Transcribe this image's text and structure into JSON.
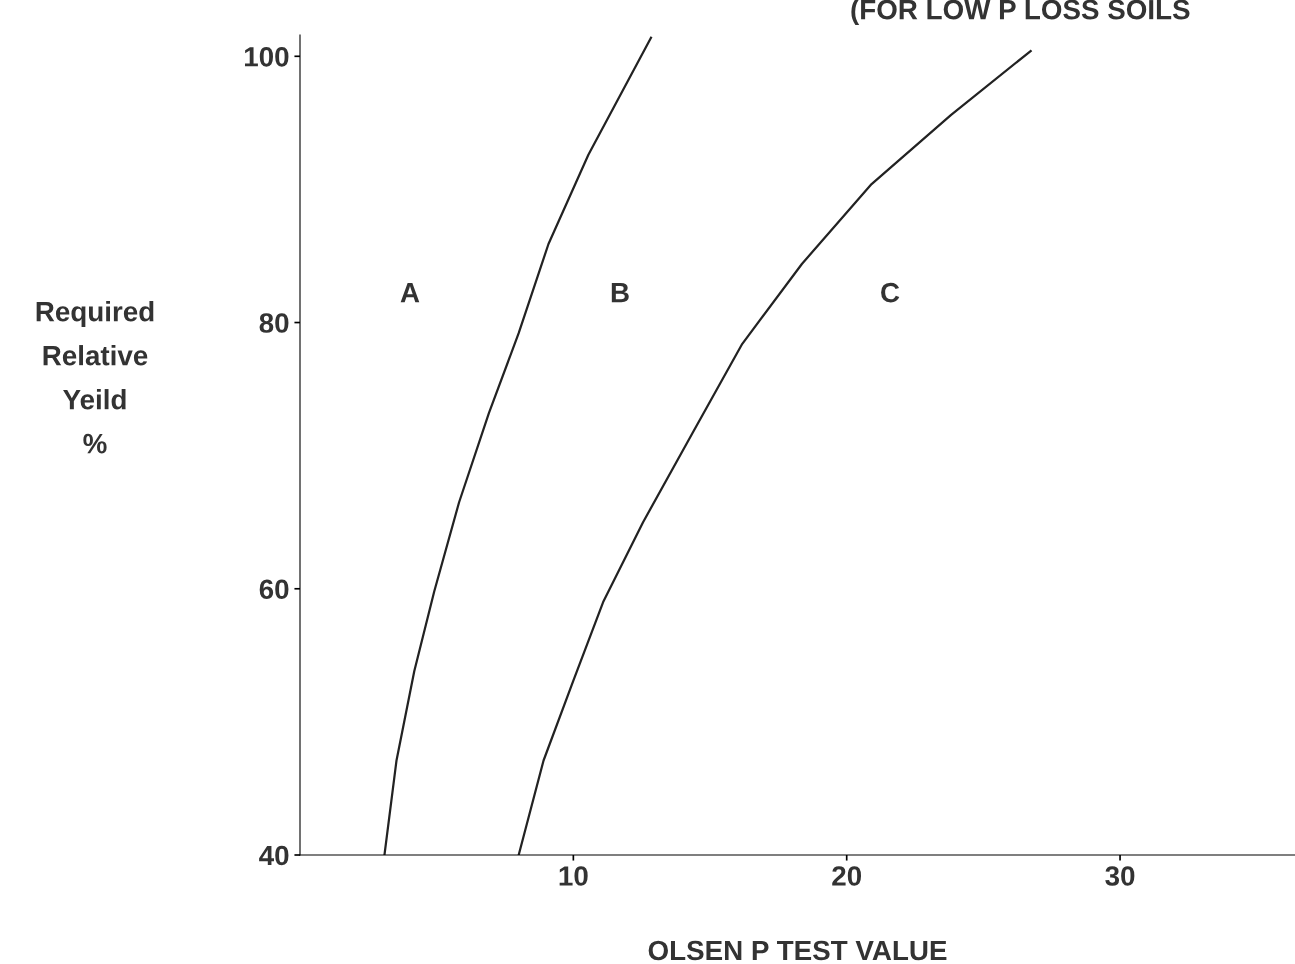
{
  "chart_data": {
    "type": "line",
    "title": "(FOR LOW P LOSS SOILS",
    "xlabel": "OLSEN P TEST VALUE",
    "ylabel": "Required\nRelative\nYeild\n%",
    "series": [
      {
        "color": "#222222",
        "x": [
          3.09,
          3.53,
          4.18,
          4.91,
          5.82,
          6.91,
          8.0,
          9.09,
          10.55,
          12.84
        ],
        "values": [
          40,
          47.1,
          53.8,
          59.8,
          66.5,
          73.2,
          79.2,
          85.9,
          92.6,
          101.4
        ]
      },
      {
        "color": "#222222",
        "x": [
          8.0,
          8.91,
          10.0,
          11.09,
          12.55,
          14.36,
          16.18,
          18.36,
          20.91,
          23.82,
          26.73
        ],
        "values": [
          40,
          47.1,
          53.1,
          59.0,
          65.0,
          71.7,
          78.4,
          84.4,
          90.4,
          95.6,
          100.4
        ]
      }
    ],
    "annotations": [
      "A",
      "B",
      "C"
    ],
    "xlim": [
      0,
      36.4
    ],
    "ylim": [
      40,
      101.6
    ],
    "xticks": [
      10,
      20,
      30
    ],
    "yticks": [
      40,
      60,
      80,
      100
    ],
    "grid": false,
    "legend": false,
    "marker": "none",
    "line_style": "solid"
  }
}
